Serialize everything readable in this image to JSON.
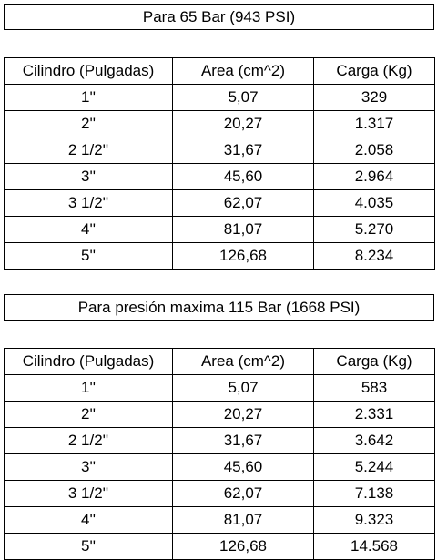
{
  "sections": [
    {
      "title": "Para 65 Bar (943 PSI)",
      "headers": [
        "Cilindro (Pulgadas)",
        "Area (cm^2)",
        "Carga (Kg)"
      ],
      "rows": [
        [
          "1''",
          "5,07",
          "329"
        ],
        [
          "2''",
          "20,27",
          "1.317"
        ],
        [
          "2 1/2''",
          "31,67",
          "2.058"
        ],
        [
          "3''",
          "45,60",
          "2.964"
        ],
        [
          "3 1/2''",
          "62,07",
          "4.035"
        ],
        [
          "4''",
          "81,07",
          "5.270"
        ],
        [
          "5''",
          "126,68",
          "8.234"
        ]
      ]
    },
    {
      "title": "Para presión maxima 115 Bar (1668 PSI)",
      "headers": [
        "Cilindro (Pulgadas)",
        "Area (cm^2)",
        "Carga (Kg)"
      ],
      "rows": [
        [
          "1''",
          "5,07",
          "583"
        ],
        [
          "2''",
          "20,27",
          "2.331"
        ],
        [
          "2 1/2''",
          "31,67",
          "3.642"
        ],
        [
          "3''",
          "45,60",
          "5.244"
        ],
        [
          "3 1/2''",
          "62,07",
          "7.138"
        ],
        [
          "4''",
          "81,07",
          "9.323"
        ],
        [
          "5''",
          "126,68",
          "14.568"
        ]
      ]
    }
  ]
}
